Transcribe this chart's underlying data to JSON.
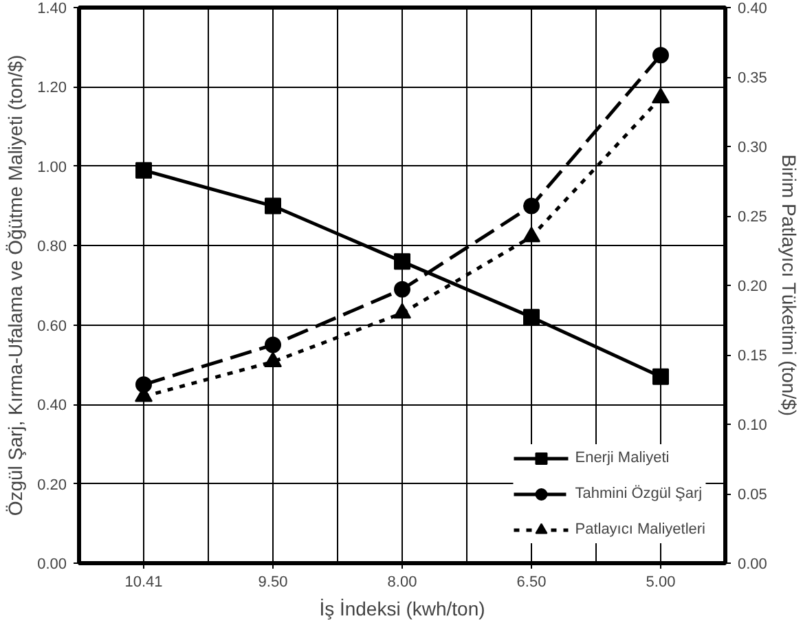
{
  "chart_data": {
    "type": "line",
    "xlabel": "İş İndeksi (kwh/ton)",
    "ylabel": "Özgül Şarj, Kırma-Ufalama ve Öğütme Maliyeti (ton/$)",
    "y2label": "Birim Patlayıcı Tüketimi (ton/$)",
    "categories": [
      "10.41",
      "9.50",
      "8.00",
      "6.50",
      "5.00"
    ],
    "series": [
      {
        "name": "Enerji Maliyeti",
        "color": "#000000",
        "marker": "square",
        "line_style": "solid",
        "values": [
          0.99,
          0.9,
          0.76,
          0.62,
          0.47
        ]
      },
      {
        "name": "Tahmini Özgül Şarj",
        "color": "#000000",
        "marker": "circle",
        "line_style": "dashed",
        "values": [
          0.45,
          0.55,
          0.69,
          0.9,
          1.28
        ]
      },
      {
        "name": "Patlayıcı Maliyetleri",
        "color": "#000000",
        "marker": "triangle",
        "line_style": "dotted",
        "axis": "y2",
        "values": [
          0.12,
          0.145,
          0.18,
          0.235,
          0.335
        ]
      }
    ],
    "ylim": [
      0,
      1.4
    ],
    "yticks": [
      {
        "value": 0,
        "label": "0.00"
      },
      {
        "value": 0.2,
        "label": "0.20"
      },
      {
        "value": 0.4,
        "label": "0.40"
      },
      {
        "value": 0.6,
        "label": "0.60"
      },
      {
        "value": 0.8,
        "label": "0.80"
      },
      {
        "value": 1.0,
        "label": "1.00"
      },
      {
        "value": 1.2,
        "label": "1.20"
      },
      {
        "value": 1.4,
        "label": "1.40"
      }
    ],
    "y2lim": [
      0,
      0.4
    ],
    "y2ticks": [
      {
        "value": 0,
        "label": "0.00"
      },
      {
        "value": 0.05,
        "label": "0.05"
      },
      {
        "value": 0.1,
        "label": "0.10"
      },
      {
        "value": 0.15,
        "label": "0.15"
      },
      {
        "value": 0.2,
        "label": "0.20"
      },
      {
        "value": 0.25,
        "label": "0.25"
      },
      {
        "value": 0.3,
        "label": "0.30"
      },
      {
        "value": 0.35,
        "label": "0.35"
      },
      {
        "value": 0.4,
        "label": "0.40"
      }
    ],
    "grid": true,
    "legend": "bottom right"
  }
}
